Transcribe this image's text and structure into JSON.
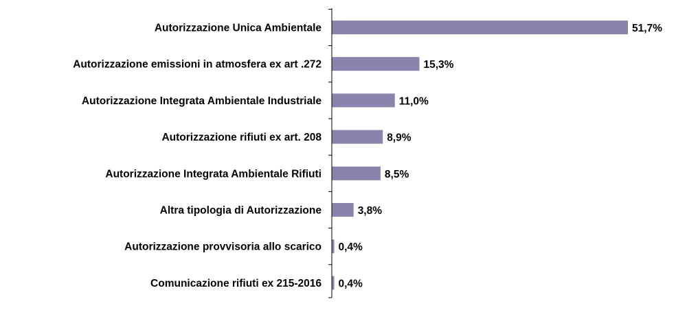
{
  "chart_data": {
    "type": "bar",
    "orientation": "horizontal",
    "categories": [
      "Autorizzazione Unica Ambientale",
      "Autorizzazione emissioni in atmosfera ex art .272",
      "Autorizzazione Integrata Ambientale Industriale",
      "Autorizzazione rifiuti ex art. 208",
      "Autorizzazione Integrata Ambientale Rifiuti",
      "Altra tipologia di Autorizzazione",
      "Autorizzazione provvisoria allo scarico",
      "Comunicazione rifiuti ex 215-2016"
    ],
    "values": [
      51.7,
      15.3,
      11.0,
      8.9,
      8.5,
      3.8,
      0.4,
      0.4
    ],
    "data_labels": [
      "51,7%",
      "15,3%",
      "11,0%",
      "8,9%",
      "8,5%",
      "3,8%",
      "0,4%",
      "0,4%"
    ],
    "unit": "%",
    "xlim": [
      0,
      51.7
    ],
    "grid": false,
    "legend": "none",
    "bar_color": "#8C82AE",
    "axis_color": "#000000"
  }
}
